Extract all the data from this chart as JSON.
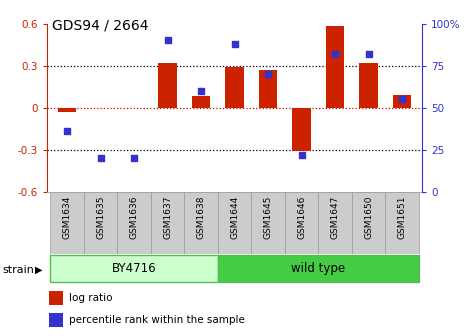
{
  "title": "GDS94 / 2664",
  "samples": [
    "GSM1634",
    "GSM1635",
    "GSM1636",
    "GSM1637",
    "GSM1638",
    "GSM1644",
    "GSM1645",
    "GSM1646",
    "GSM1647",
    "GSM1650",
    "GSM1651"
  ],
  "log_ratio": [
    -0.03,
    0.0,
    0.0,
    0.32,
    0.08,
    0.29,
    0.27,
    -0.31,
    0.58,
    0.32,
    0.09
  ],
  "percentile": [
    36,
    20,
    20,
    90,
    60,
    88,
    70,
    22,
    82,
    82,
    55
  ],
  "bar_color": "#cc2200",
  "dot_color": "#3333cc",
  "left_ylim": [
    -0.6,
    0.6
  ],
  "right_ylim": [
    0,
    100
  ],
  "left_yticks": [
    -0.6,
    -0.3,
    0.0,
    0.3,
    0.6
  ],
  "right_yticks": [
    0,
    25,
    50,
    75,
    100
  ],
  "right_yticklabels": [
    "0",
    "25",
    "50",
    "75",
    "100%"
  ],
  "strain_groups": [
    {
      "label": "BY4716",
      "start": 0,
      "end": 5,
      "color": "#ccffcc",
      "edge_color": "#55bb55"
    },
    {
      "label": "wild type",
      "start": 5,
      "end": 11,
      "color": "#44cc44",
      "edge_color": "#55bb55"
    }
  ],
  "strain_label": "strain",
  "legend_items": [
    {
      "color": "#cc2200",
      "label": "log ratio"
    },
    {
      "color": "#3333cc",
      "label": "percentile rank within the sample"
    }
  ],
  "bg_color": "#ffffff",
  "axis_left_color": "#cc2200",
  "axis_right_color": "#3333cc",
  "bar_width": 0.55,
  "dot_size": 18
}
